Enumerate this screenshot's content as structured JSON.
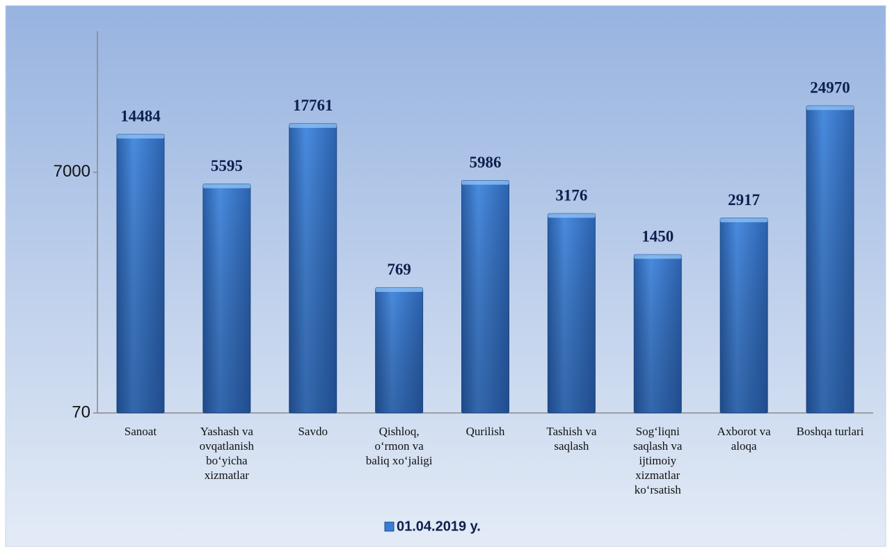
{
  "chart_data": {
    "type": "bar",
    "categories": [
      "Sanoat",
      "Yashash va ovqatlanish bo‘yicha xizmatlar",
      "Savdo",
      "Qishloq, o‘rmon va baliq xo‘jaligi",
      "Qurilish",
      "Tashish va saqlash",
      "Sog‘liqni saqlash va ijtimoiy xizmatlar ko‘rsatish",
      "Axborot va aloqa",
      "Boshqa turlari"
    ],
    "series": [
      {
        "name": "01.04.2019 y.",
        "color": "#3a7bd5",
        "values": [
          14484,
          5595,
          17761,
          769,
          5986,
          3176,
          1450,
          2917,
          24970
        ]
      }
    ],
    "ylim": [
      70,
      100000
    ],
    "yticks": [
      70,
      7000
    ],
    "log_scale": true,
    "grid": false,
    "legend": "bottom"
  }
}
